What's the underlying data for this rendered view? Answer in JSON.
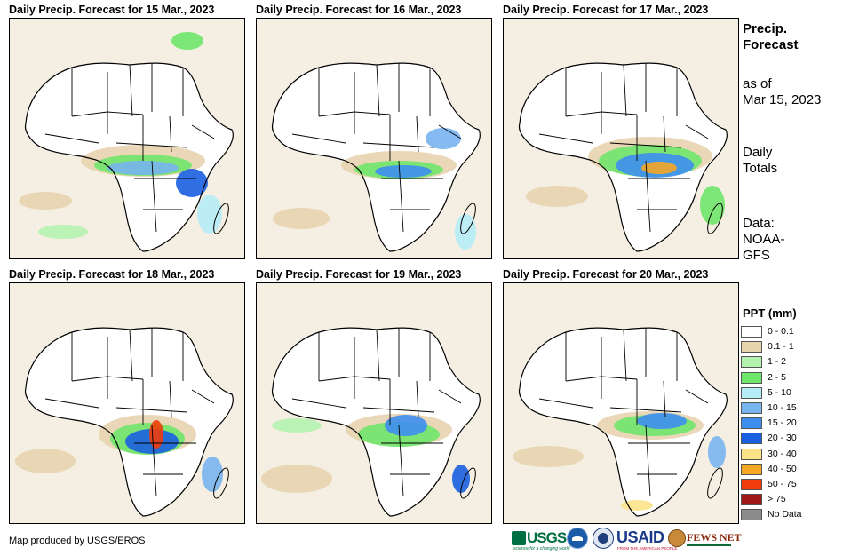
{
  "panels": [
    {
      "title": "Daily Precip. Forecast for 15 Mar., 2023",
      "date": "15 Mar."
    },
    {
      "title": "Daily Precip. Forecast for 16 Mar., 2023",
      "date": "16 Mar."
    },
    {
      "title": "Daily Precip. Forecast for 17 Mar., 2023",
      "date": "17 Mar."
    },
    {
      "title": "Daily Precip. Forecast for 18 Mar., 2023",
      "date": "18 Mar."
    },
    {
      "title": "Daily Precip. Forecast for 19 Mar., 2023",
      "date": "19 Mar."
    },
    {
      "title": "Daily Precip. Forecast for 20 Mar., 2023",
      "date": "20 Mar."
    }
  ],
  "sidebar": {
    "title_line1": "Precip.",
    "title_line2": "Forecast",
    "asof_line1": "as of",
    "asof_line2": "Mar 15, 2023",
    "totals_line1": "Daily",
    "totals_line2": "Totals",
    "data_line1": "Data:",
    "data_line2": "NOAA-",
    "data_line3": "GFS"
  },
  "legend": {
    "title": "PPT (mm)",
    "items": [
      {
        "label": "0 - 0.1",
        "color": "#ffffff"
      },
      {
        "label": "0.1 - 1",
        "color": "#e8d3af"
      },
      {
        "label": "1 - 2",
        "color": "#b5f2b0"
      },
      {
        "label": "2 - 5",
        "color": "#6fe66b"
      },
      {
        "label": "5 - 10",
        "color": "#b6ecf7"
      },
      {
        "label": "10 - 15",
        "color": "#78b4f0"
      },
      {
        "label": "15 - 20",
        "color": "#3e8ef0"
      },
      {
        "label": "20 - 30",
        "color": "#1a5fe0"
      },
      {
        "label": "30 - 40",
        "color": "#fce38a"
      },
      {
        "label": "40 - 50",
        "color": "#f5a623"
      },
      {
        "label": "50 - 75",
        "color": "#f03c0a"
      },
      {
        "label": "> 75",
        "color": "#a01818"
      },
      {
        "label": "No Data",
        "color": "#8c8c8c"
      }
    ]
  },
  "credit": "Map produced by USGS/EROS",
  "logos": {
    "usgs": "USGS",
    "usgs_tagline": "science for a changing world",
    "usaid": "USAID",
    "usaid_tagline": "FROM THE AMERICAN PEOPLE",
    "fews": "FEWS NET"
  }
}
